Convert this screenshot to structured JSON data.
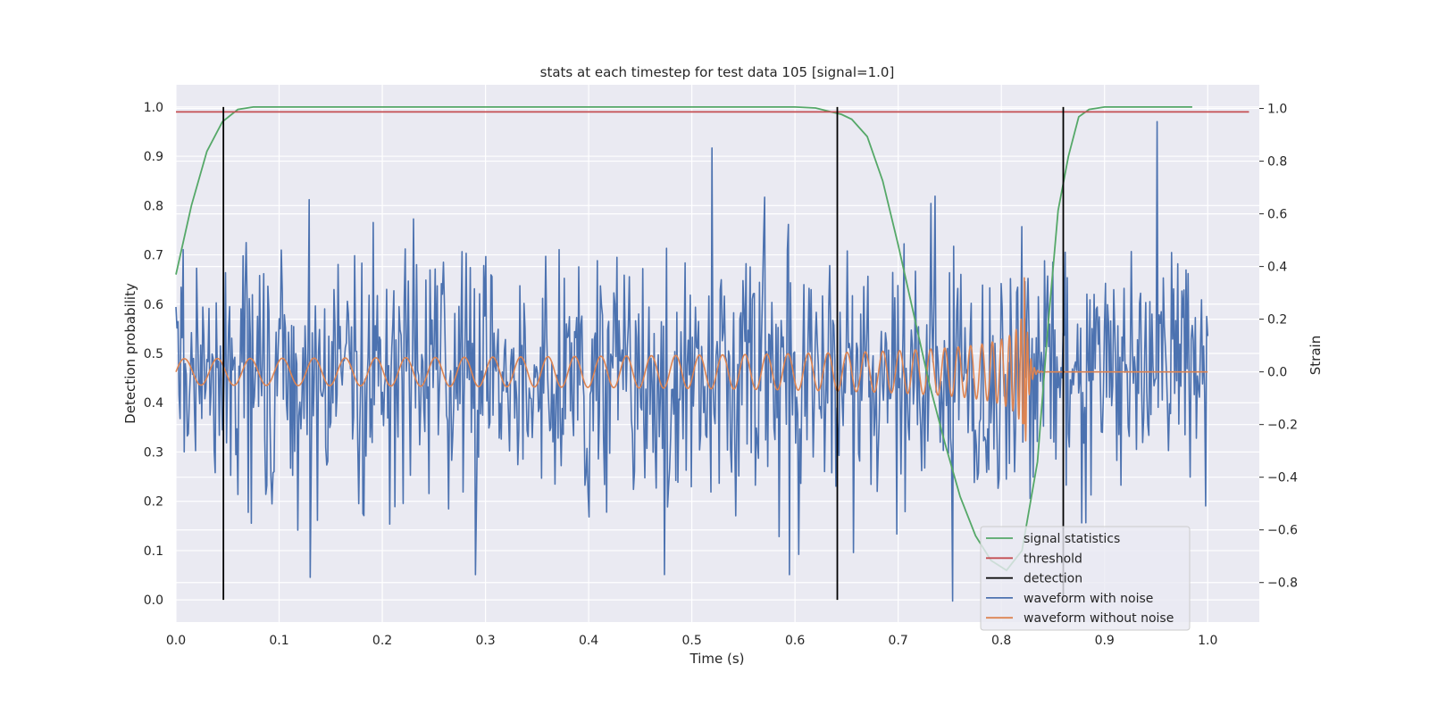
{
  "chart_data": {
    "type": "line",
    "title": "stats at each timestep for test data 105 [signal=1.0]",
    "xlabel": "Time (s)",
    "ylabel_left": "Detection probability",
    "ylabel_right": "Strain",
    "xlim": [
      0.0,
      1.05
    ],
    "ylim_left": [
      -0.045,
      1.045
    ],
    "ylim_right": [
      -0.95,
      1.09
    ],
    "x_ticks": [
      "0.0",
      "0.1",
      "0.2",
      "0.3",
      "0.4",
      "0.5",
      "0.6",
      "0.7",
      "0.8",
      "0.9",
      "1.0"
    ],
    "y_ticks_left": [
      "0.0",
      "0.1",
      "0.2",
      "0.3",
      "0.4",
      "0.5",
      "0.6",
      "0.7",
      "0.8",
      "0.9",
      "1.0"
    ],
    "y_ticks_right": [
      "−0.8",
      "−0.6",
      "−0.4",
      "−0.2",
      "0.0",
      "0.2",
      "0.4",
      "0.6",
      "0.8",
      "1.0"
    ],
    "grid": true,
    "legend_position": "lower-right",
    "legend": [
      {
        "label": "signal statistics",
        "color": "#55a868"
      },
      {
        "label": "threshold",
        "color": "#c44e52"
      },
      {
        "label": "detection",
        "color": "#000000"
      },
      {
        "label": "waveform with noise",
        "color": "#4c72b0"
      },
      {
        "label": "waveform without noise",
        "color": "#dd8452"
      }
    ],
    "signal_statistics": {
      "axis": "left",
      "x": [
        0.0,
        0.015,
        0.03,
        0.045,
        0.06,
        0.075,
        0.1,
        0.2,
        0.3,
        0.4,
        0.5,
        0.6,
        0.62,
        0.635,
        0.645,
        0.655,
        0.67,
        0.685,
        0.7,
        0.715,
        0.73,
        0.745,
        0.76,
        0.775,
        0.79,
        0.805,
        0.82,
        0.835,
        0.845,
        0.855,
        0.865,
        0.875,
        0.885,
        0.9,
        0.95,
        0.985
      ],
      "y": [
        0.66,
        0.8,
        0.91,
        0.97,
        0.995,
        1.0,
        1.0,
        1.0,
        1.0,
        1.0,
        1.0,
        1.0,
        0.998,
        0.99,
        0.985,
        0.975,
        0.94,
        0.85,
        0.72,
        0.58,
        0.44,
        0.32,
        0.21,
        0.13,
        0.08,
        0.06,
        0.1,
        0.28,
        0.55,
        0.79,
        0.9,
        0.98,
        0.995,
        1.0,
        1.0,
        1.0
      ]
    },
    "threshold": {
      "axis": "left",
      "y": 0.99,
      "x_range": [
        0.0,
        1.04
      ]
    },
    "detections": {
      "axis": "left",
      "x": [
        0.046,
        0.641,
        0.86
      ],
      "y_range": [
        0.0,
        1.0
      ]
    },
    "waveform_with_noise": {
      "axis": "right",
      "description_points": 1000,
      "x_range": [
        0.0,
        1.0
      ],
      "std": 0.23,
      "seed": 105,
      "peak_points": [
        [
          0.951,
          1.0
        ],
        [
          0.753,
          -0.87
        ],
        [
          0.13,
          -0.78
        ],
        [
          0.29,
          -0.77
        ],
        [
          0.595,
          -0.77
        ],
        [
          0.52,
          0.85
        ]
      ]
    },
    "waveform_without_noise": {
      "axis": "right",
      "x_range": [
        0.0,
        1.0
      ],
      "merger_time": 0.822,
      "start_frequency_hz": 17,
      "start_amplitude": 0.05,
      "peak_amplitude": 0.45,
      "ringdown_end": 0.835
    }
  }
}
